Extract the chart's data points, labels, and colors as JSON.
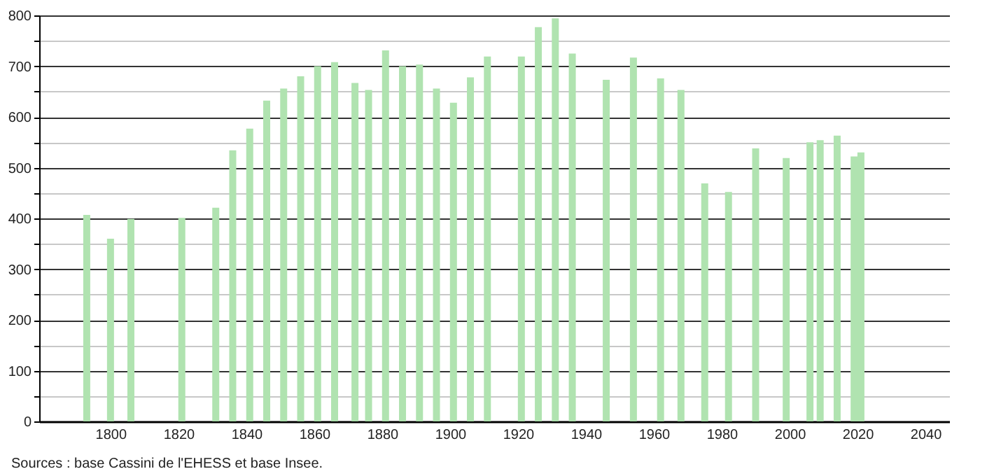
{
  "chart_data": {
    "type": "bar",
    "x": [
      1793,
      1800,
      1806,
      1821,
      1831,
      1836,
      1841,
      1846,
      1851,
      1856,
      1861,
      1866,
      1872,
      1876,
      1881,
      1886,
      1891,
      1896,
      1901,
      1906,
      1911,
      1921,
      1926,
      1931,
      1936,
      1946,
      1954,
      1962,
      1968,
      1975,
      1982,
      1990,
      1999,
      2006,
      2009,
      2014,
      2019,
      2021
    ],
    "values": [
      407,
      360,
      399,
      401,
      421,
      534,
      577,
      632,
      656,
      680,
      700,
      708,
      667,
      653,
      731,
      700,
      703,
      656,
      628,
      678,
      719,
      719,
      777,
      794,
      725,
      673,
      717,
      676,
      653,
      469,
      452,
      538,
      519,
      550,
      554,
      563,
      522,
      530
    ],
    "color": "#b0e3b0",
    "xlim": [
      1779,
      2047
    ],
    "xticks": [
      1800,
      1820,
      1840,
      1860,
      1880,
      1900,
      1920,
      1940,
      1960,
      1980,
      2000,
      2020,
      2040
    ],
    "ylim": [
      0,
      800
    ],
    "yticks": [
      0,
      {
        "value": 50,
        "label": null
      },
      100,
      {
        "value": 150,
        "label": null
      },
      200,
      {
        "value": 250,
        "label": null
      },
      300,
      {
        "value": 350,
        "label": null
      },
      400,
      {
        "value": 450,
        "label": null
      },
      500,
      {
        "value": 550,
        "label": null
      },
      600,
      {
        "value": 650,
        "label": null
      },
      700,
      {
        "value": 750,
        "label": null
      },
      800
    ],
    "grid": "y",
    "annotations": [
      "Sources : base Cassini de l'EHESS et base Insee."
    ]
  }
}
